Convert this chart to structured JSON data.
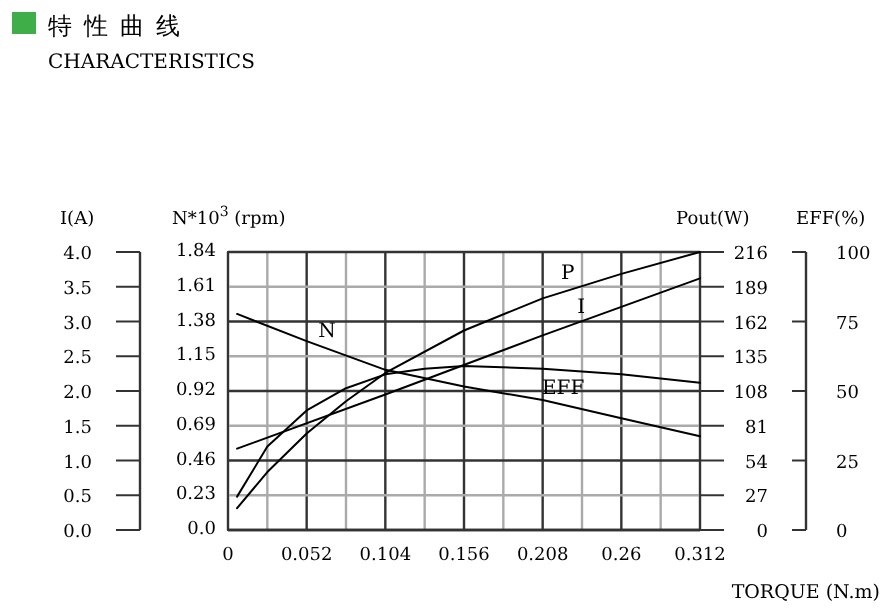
{
  "chart_data": [
    {
      "type": "line",
      "title": "特性曲线",
      "subtitle": "CHARACTERISTICS",
      "xlabel": "TORQUE (N.m)",
      "ylabel": "I(A)",
      "y2label": "N*10$^{3}$ (rpm)",
      "y3label": "Pout(W)",
      "xlim": [
        0,
        0.312
      ],
      "xticks": [
        0,
        {
          "value": 0.026,
          "label": null
        },
        0.052,
        {
          "value": 0.078,
          "label": null
        },
        0.104,
        {
          "value": 0.13,
          "label": null
        },
        0.156,
        {
          "value": 0.182,
          "label": null
        },
        0.208,
        {
          "value": 0.234,
          "label": null
        },
        0.26,
        {
          "value": 0.286,
          "label": null
        },
        0.312
      ],
      "ylim": [
        0,
        4
      ],
      "yticks": [
        {
          "value": 0,
          "label": "0.0"
        },
        0.5,
        {
          "value": 1,
          "label": "1.0"
        },
        1.5,
        {
          "value": 2,
          "label": "2.0"
        },
        2.5,
        {
          "value": 3,
          "label": "3.0"
        },
        3.5,
        {
          "value": 4,
          "label": "4.0"
        }
      ],
      "y2lim": [
        0,
        1.84
      ],
      "y2ticks": [
        {
          "value": 0,
          "label": "0.0"
        },
        0.23,
        0.46,
        0.69,
        0.92,
        1.15,
        1.38,
        1.61,
        1.84
      ],
      "y3lim": [
        0,
        216
      ],
      "y3ticks": [
        0,
        27,
        54,
        81,
        108,
        135,
        162,
        189,
        216
      ],
      "grid": true,
      "marker": "none",
      "line_style": "solid",
      "series": [
        {
          "name": "I",
          "color": "#000000",
          "x": [
            0.006,
            0.104,
            0.208,
            0.312
          ],
          "values": [
            1.17,
            1.95,
            2.8,
            3.62
          ]
        },
        {
          "name": "N",
          "color": "#000000",
          "axis": "y2",
          "x": [
            0.006,
            0.052,
            0.104,
            0.156,
            0.208,
            0.26,
            0.312
          ],
          "values": [
            1.43,
            1.25,
            1.06,
            0.95,
            0.86,
            0.74,
            0.62
          ]
        },
        {
          "name": "P",
          "color": "#000000",
          "axis": "y3",
          "x": [
            0.006,
            0.026,
            0.052,
            0.078,
            0.104,
            0.156,
            0.208,
            0.26,
            0.312
          ],
          "values": [
            17,
            45,
            75,
            100,
            122,
            155,
            180,
            199,
            216
          ]
        }
      ]
    },
    {
      "type": "line",
      "ylabel": "EFF(%)",
      "xlim": [
        0,
        0.312
      ],
      "ylim": [
        0,
        100
      ],
      "yticks": [
        0,
        25,
        50,
        75,
        100
      ],
      "tick_labels": "y",
      "line_style": "solid",
      "series": [
        {
          "name": "EFF",
          "color": "#000000",
          "x": [
            0.006,
            0.026,
            0.052,
            0.078,
            0.104,
            0.13,
            0.156,
            0.208,
            0.26,
            0.312
          ],
          "values": [
            12,
            30,
            43,
            51,
            56,
            58,
            59,
            58,
            56,
            53
          ]
        }
      ]
    }
  ]
}
